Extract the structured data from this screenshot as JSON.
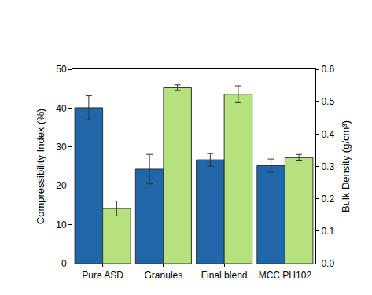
{
  "chart_data": {
    "type": "bar",
    "categories": [
      "Pure ASD",
      "Granules",
      "Final blend",
      "MCC PH102"
    ],
    "ylabel": "Compressibility Index (%)",
    "y2label": "Bulk Density (g/cm³)",
    "ylim": [
      0,
      50
    ],
    "yticks": [
      0,
      10,
      20,
      30,
      40,
      50
    ],
    "y2lim": [
      0,
      0.6
    ],
    "y2ticks": [
      {
        "value": 0,
        "label": "0.0"
      },
      0.1,
      0.2,
      0.3,
      0.4,
      0.5,
      0.6
    ],
    "grid": false,
    "series": [
      {
        "color": "#1f67a8",
        "values": [
          40.1,
          24.3,
          26.7,
          25.2
        ],
        "errors": [
          3.1,
          3.8,
          1.6,
          1.7
        ]
      },
      {
        "color": "#b5e27e",
        "axis": "y2",
        "values": [
          0.17,
          0.543,
          0.523,
          0.327
        ],
        "errors": [
          0.023,
          0.009,
          0.026,
          0.01
        ]
      }
    ]
  }
}
